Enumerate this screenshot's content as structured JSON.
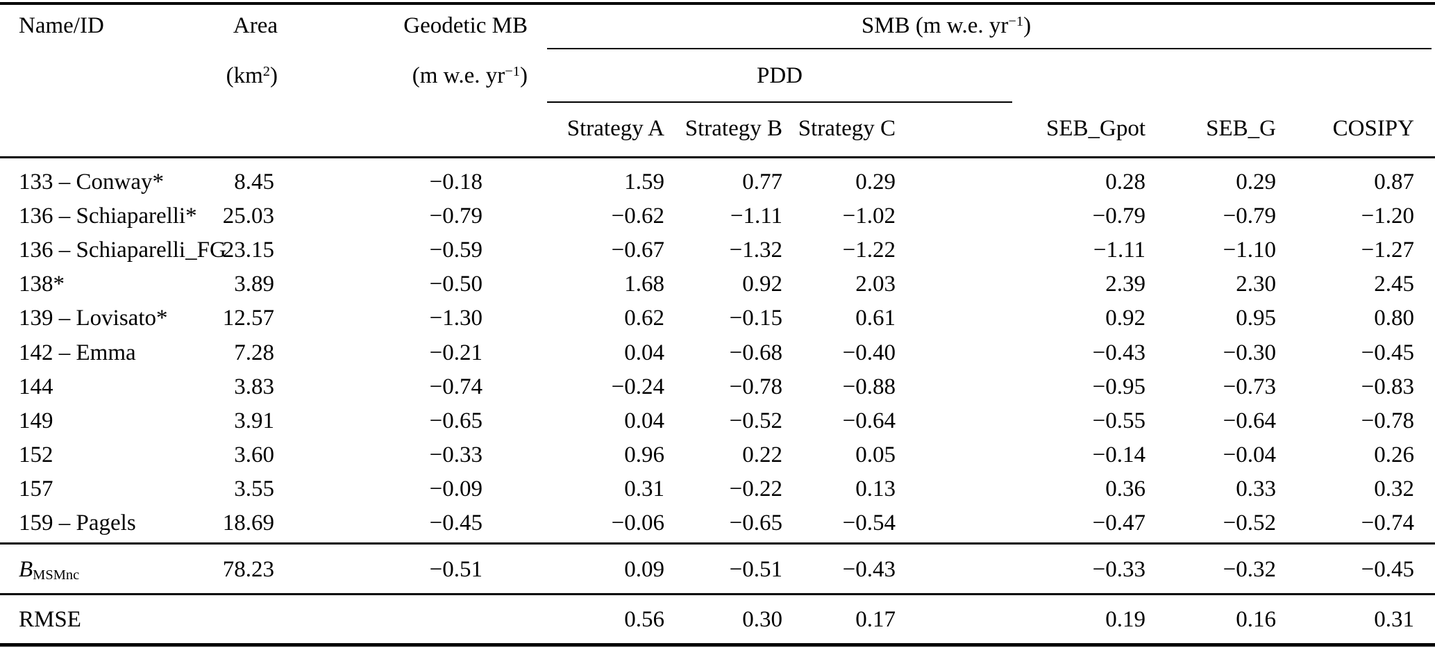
{
  "table": {
    "header": {
      "name_id": "Name/ID",
      "area_label": "Area",
      "area_unit_pre": "(km",
      "area_unit_sup": "2",
      "area_unit_post": ")",
      "geodetic_label": "Geodetic MB",
      "geodetic_unit_pre": "(m w.e. yr",
      "geodetic_unit_sup": "−1",
      "geodetic_unit_post": ")",
      "smb_pre": "SMB (m w.e. yr",
      "smb_sup": "−1",
      "smb_post": ")",
      "pdd": "PDD",
      "columns": [
        "Strategy A",
        "Strategy B",
        "Strategy C",
        "SEB_Gpot",
        "SEB_G",
        "COSIPY"
      ]
    },
    "rows": [
      {
        "name": "133 – Conway*",
        "area": "8.45",
        "geodetic": "−0.18",
        "smb": [
          "1.59",
          "0.77",
          "0.29",
          "0.28",
          "0.29",
          "0.87"
        ]
      },
      {
        "name": "136 – Schiaparelli*",
        "area": "25.03",
        "geodetic": "−0.79",
        "smb": [
          "−0.62",
          "−1.11",
          "−1.02",
          "−0.79",
          "−0.79",
          "−1.20"
        ]
      },
      {
        "name": "136 – Schiaparelli_FG",
        "area": "23.15",
        "geodetic": "−0.59",
        "smb": [
          "−0.67",
          "−1.32",
          "−1.22",
          "−1.11",
          "−1.10",
          "−1.27"
        ]
      },
      {
        "name": "138*",
        "area": "3.89",
        "geodetic": "−0.50",
        "smb": [
          "1.68",
          "0.92",
          "2.03",
          "2.39",
          "2.30",
          "2.45"
        ]
      },
      {
        "name": "139 – Lovisato*",
        "area": "12.57",
        "geodetic": "−1.30",
        "smb": [
          "0.62",
          "−0.15",
          "0.61",
          "0.92",
          "0.95",
          "0.80"
        ]
      },
      {
        "name": "142 – Emma",
        "area": "7.28",
        "geodetic": "−0.21",
        "smb": [
          "0.04",
          "−0.68",
          "−0.40",
          "−0.43",
          "−0.30",
          "−0.45"
        ]
      },
      {
        "name": "144",
        "area": "3.83",
        "geodetic": "−0.74",
        "smb": [
          "−0.24",
          "−0.78",
          "−0.88",
          "−0.95",
          "−0.73",
          "−0.83"
        ]
      },
      {
        "name": "149",
        "area": "3.91",
        "geodetic": "−0.65",
        "smb": [
          "0.04",
          "−0.52",
          "−0.64",
          "−0.55",
          "−0.64",
          "−0.78"
        ]
      },
      {
        "name": "152",
        "area": "3.60",
        "geodetic": "−0.33",
        "smb": [
          "0.96",
          "0.22",
          "0.05",
          "−0.14",
          "−0.04",
          "0.26"
        ]
      },
      {
        "name": "157",
        "area": "3.55",
        "geodetic": "−0.09",
        "smb": [
          "0.31",
          "−0.22",
          "0.13",
          "0.36",
          "0.33",
          "0.32"
        ]
      },
      {
        "name": "159 – Pagels",
        "area": "18.69",
        "geodetic": "−0.45",
        "smb": [
          "−0.06",
          "−0.65",
          "−0.54",
          "−0.47",
          "−0.52",
          "−0.74"
        ]
      }
    ],
    "summary": {
      "label_base": "B",
      "label_sub": "MSMnc",
      "area": "78.23",
      "geodetic": "−0.51",
      "smb": [
        "0.09",
        "−0.51",
        "−0.43",
        "−0.33",
        "−0.32",
        "−0.45"
      ]
    },
    "rmse": {
      "label": "RMSE",
      "smb": [
        "0.56",
        "0.30",
        "0.17",
        "0.19",
        "0.16",
        "0.31"
      ]
    }
  }
}
